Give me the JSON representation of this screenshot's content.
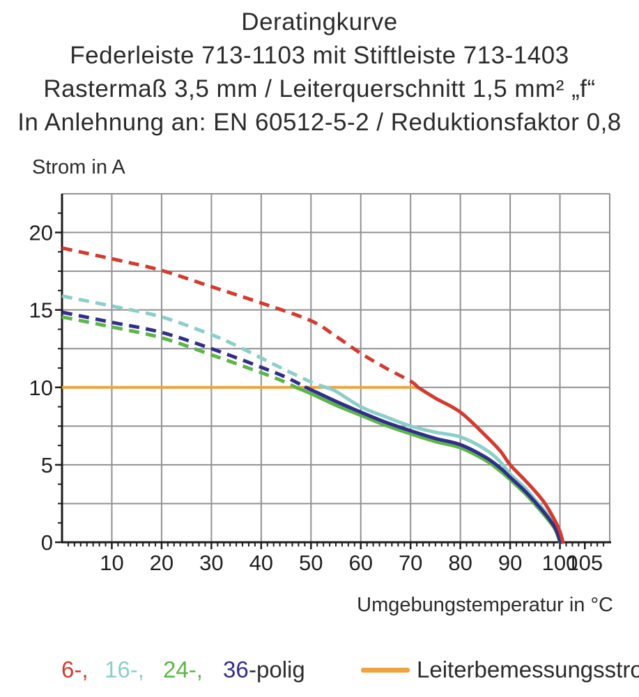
{
  "header": {
    "title": "Deratingkurve",
    "subtitle1": "Federleiste 713-1103 mit Stiftleiste 713-1403",
    "subtitle2": "Rastermaß 3,5 mm / Leiterquerschnitt 1,5 mm² „f“",
    "subtitle3": "In Anlehnung an: EN 60512-5-2 / Reduktionsfaktor 0,8"
  },
  "chart_data": {
    "type": "line",
    "ylabel": "Strom in A",
    "xlabel": "Umgebungstemperatur in °C",
    "xlim": [
      0,
      110
    ],
    "ylim": [
      0,
      22.5
    ],
    "grid": true,
    "x_grid_step": 10,
    "y_grid_step": 2.5,
    "minor_tick_step": 1.25,
    "x_major_ticks": [
      10,
      20,
      30,
      40,
      50,
      60,
      70,
      80,
      90,
      100,
      105
    ],
    "y_major_ticks": [
      0,
      5,
      10,
      15,
      20
    ],
    "colors": {
      "grid": "#919191",
      "axis": "#1c1c1c",
      "text": "#1f1f1f",
      "red": "#d23b2f",
      "cyan": "#8ccfc9",
      "green": "#5bb648",
      "navy": "#312e8a",
      "orange": "#f0a23c"
    },
    "reference_line": {
      "label": "Leiterbemessungsstrom",
      "value": 10,
      "x_start": 0,
      "x_end": 71.5,
      "color": "#f0a23c"
    },
    "series": [
      {
        "name": "6-polig",
        "color": "#d23b2f",
        "dashed_points": [
          [
            0,
            19.0
          ],
          [
            10,
            18.3
          ],
          [
            20,
            17.55
          ],
          [
            30,
            16.5
          ],
          [
            40,
            15.45
          ],
          [
            50,
            14.3
          ],
          [
            55,
            13.3
          ],
          [
            60,
            12.2
          ],
          [
            65,
            11.25
          ],
          [
            70,
            10.4
          ],
          [
            71.5,
            10.0
          ]
        ],
        "solid_points": [
          [
            71.5,
            10.0
          ],
          [
            75,
            9.3
          ],
          [
            80,
            8.4
          ],
          [
            85,
            6.9
          ],
          [
            88,
            5.9
          ],
          [
            90,
            5.0
          ],
          [
            93,
            4.0
          ],
          [
            95,
            3.3
          ],
          [
            97,
            2.5
          ],
          [
            99,
            1.4
          ],
          [
            100,
            0.7
          ],
          [
            100.6,
            0
          ]
        ]
      },
      {
        "name": "16-polig",
        "color": "#8ccfc9",
        "dashed_points": [
          [
            0,
            15.9
          ],
          [
            10,
            15.25
          ],
          [
            20,
            14.55
          ],
          [
            30,
            13.4
          ],
          [
            35,
            12.7
          ],
          [
            40,
            11.9
          ],
          [
            45,
            11.1
          ],
          [
            50,
            10.35
          ],
          [
            53,
            10.0
          ]
        ],
        "solid_points": [
          [
            53,
            10.0
          ],
          [
            55,
            9.75
          ],
          [
            60,
            8.75
          ],
          [
            65,
            8.1
          ],
          [
            70,
            7.5
          ],
          [
            75,
            7.1
          ],
          [
            80,
            6.8
          ],
          [
            85,
            6.0
          ],
          [
            88,
            5.2
          ],
          [
            90,
            4.4
          ],
          [
            93,
            3.5
          ],
          [
            95,
            2.75
          ],
          [
            97,
            2.0
          ],
          [
            99,
            1.0
          ],
          [
            100.3,
            0
          ]
        ]
      },
      {
        "name": "24-polig",
        "color": "#5bb648",
        "dashed_points": [
          [
            0,
            14.55
          ],
          [
            10,
            13.9
          ],
          [
            20,
            13.2
          ],
          [
            30,
            12.1
          ],
          [
            40,
            10.95
          ],
          [
            44,
            10.45
          ],
          [
            47,
            10.0
          ]
        ],
        "solid_points": [
          [
            47,
            10.0
          ],
          [
            50,
            9.6
          ],
          [
            55,
            8.85
          ],
          [
            60,
            8.2
          ],
          [
            65,
            7.55
          ],
          [
            70,
            7.0
          ],
          [
            75,
            6.5
          ],
          [
            80,
            6.1
          ],
          [
            85,
            5.3
          ],
          [
            88,
            4.6
          ],
          [
            90,
            4.05
          ],
          [
            93,
            3.15
          ],
          [
            95,
            2.45
          ],
          [
            97,
            1.7
          ],
          [
            99,
            0.85
          ],
          [
            100,
            0
          ]
        ]
      },
      {
        "name": "36-polig",
        "color": "#312e8a",
        "dashed_points": [
          [
            0,
            14.85
          ],
          [
            10,
            14.2
          ],
          [
            20,
            13.55
          ],
          [
            30,
            12.5
          ],
          [
            40,
            11.3
          ],
          [
            45,
            10.65
          ],
          [
            49,
            10.0
          ]
        ],
        "solid_points": [
          [
            49,
            10.0
          ],
          [
            50,
            9.85
          ],
          [
            55,
            9.1
          ],
          [
            60,
            8.4
          ],
          [
            65,
            7.75
          ],
          [
            70,
            7.2
          ],
          [
            75,
            6.7
          ],
          [
            80,
            6.3
          ],
          [
            85,
            5.5
          ],
          [
            88,
            4.8
          ],
          [
            90,
            4.2
          ],
          [
            93,
            3.3
          ],
          [
            95,
            2.6
          ],
          [
            97,
            1.85
          ],
          [
            99,
            0.95
          ],
          [
            100.1,
            0
          ]
        ]
      }
    ]
  },
  "legend": {
    "items": [
      {
        "label": "6-,",
        "color": "#d23b2f"
      },
      {
        "label": "16-,",
        "color": "#8ccfc9"
      },
      {
        "label": "24-,",
        "color": "#5bb648"
      },
      {
        "label": "36",
        "color": "#312e8a"
      },
      {
        "label": "-polig",
        "color": "#2e2e2e"
      }
    ]
  }
}
